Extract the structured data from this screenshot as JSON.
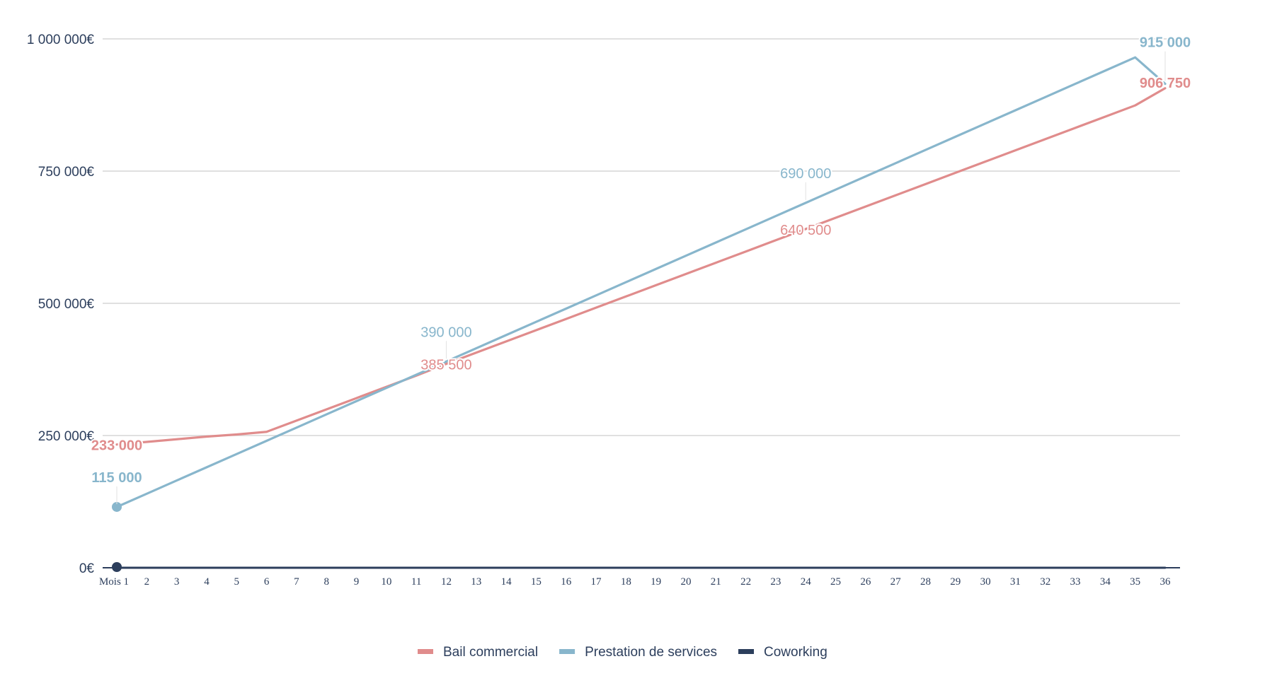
{
  "chart_data": {
    "type": "line",
    "title": "",
    "xlabel": "",
    "ylabel": "",
    "x": [
      "Mois 1",
      "2",
      "3",
      "4",
      "5",
      "6",
      "7",
      "8",
      "9",
      "10",
      "11",
      "12",
      "13",
      "14",
      "15",
      "16",
      "17",
      "18",
      "19",
      "20",
      "21",
      "22",
      "23",
      "24",
      "25",
      "26",
      "27",
      "28",
      "29",
      "30",
      "31",
      "32",
      "33",
      "34",
      "35",
      "36"
    ],
    "ylim": [
      0,
      1000000
    ],
    "yticks": [
      0,
      250000,
      500000,
      750000,
      1000000
    ],
    "ytick_labels": [
      "0€",
      "250 000€",
      "500 000€",
      "750 000€",
      "1 000 000€"
    ],
    "grid": true,
    "legend_position": "bottom",
    "series": [
      {
        "name": "Bail commercial",
        "color": "#e08c8c",
        "values": [
          233000,
          238000,
          243000,
          248000,
          252000,
          257000,
          278250,
          299500,
          320750,
          342000,
          363250,
          385500,
          406750,
          428000,
          449250,
          470500,
          491750,
          513000,
          534250,
          555500,
          576750,
          598000,
          619250,
          640500,
          661750,
          683000,
          704250,
          725500,
          746750,
          768000,
          789250,
          810500,
          831750,
          853000,
          874250,
          906750
        ],
        "data_labels": [
          {
            "index": 0,
            "text": "233 000",
            "bold": true
          },
          {
            "index": 11,
            "text": "385 500",
            "bold": false
          },
          {
            "index": 23,
            "text": "640 500",
            "bold": false
          },
          {
            "index": 35,
            "text": "906 750",
            "bold": true
          }
        ]
      },
      {
        "name": "Prestation de services",
        "color": "#88b6cc",
        "values": [
          115000,
          140000,
          165000,
          190000,
          215000,
          240000,
          265000,
          290000,
          315000,
          340000,
          365000,
          390000,
          415000,
          440000,
          465000,
          490000,
          515000,
          540000,
          565000,
          590000,
          615000,
          640000,
          665000,
          690000,
          715000,
          740000,
          765000,
          790000,
          815000,
          840000,
          865000,
          890000,
          915000,
          940000,
          965000,
          915000
        ],
        "data_labels": [
          {
            "index": 0,
            "text": "115 000",
            "bold": true
          },
          {
            "index": 11,
            "text": "390 000",
            "bold": false
          },
          {
            "index": 23,
            "text": "690 000",
            "bold": false
          },
          {
            "index": 35,
            "text": "915 000",
            "bold": true
          }
        ]
      },
      {
        "name": "Coworking",
        "color": "#2c3e5c",
        "values": [
          0,
          0,
          0,
          0,
          0,
          0,
          0,
          0,
          0,
          0,
          0,
          0,
          0,
          0,
          0,
          0,
          0,
          0,
          0,
          0,
          0,
          0,
          0,
          0,
          0,
          0,
          0,
          0,
          0,
          0,
          0,
          0,
          0,
          0,
          0,
          0
        ]
      }
    ]
  }
}
